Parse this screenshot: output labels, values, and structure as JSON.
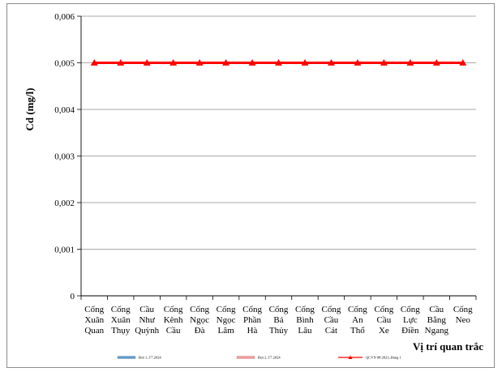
{
  "chart_data": {
    "type": "line",
    "ylabel": "Cd (mg/l)",
    "xlabel": "Vị trí quan trắc",
    "ylim": [
      0,
      0.006
    ],
    "yticks": [
      {
        "value": 0,
        "label": "0"
      },
      {
        "value": 0.001,
        "label": "0,001"
      },
      {
        "value": 0.002,
        "label": "0,002"
      },
      {
        "value": 0.003,
        "label": "0,003"
      },
      {
        "value": 0.004,
        "label": "0,004"
      },
      {
        "value": 0.005,
        "label": "0,005"
      },
      {
        "value": 0.006,
        "label": "0,006"
      }
    ],
    "grid": true,
    "legend_position": "bottom",
    "categories": [
      [
        "Cống",
        "Xuân",
        "Quan"
      ],
      [
        "Cống",
        "Xuân",
        "Thụy"
      ],
      [
        "Cầu",
        "Như",
        "Quỳnh"
      ],
      [
        "Cống",
        "Kênh",
        "Cầu"
      ],
      [
        "Cống",
        "Ngọc",
        "Đà"
      ],
      [
        "Cống",
        "Ngọc",
        "Lâm"
      ],
      [
        "Cống",
        "Phần",
        "Hà"
      ],
      [
        "Cống",
        "Bá",
        "Thủy"
      ],
      [
        "Cống",
        "Bình",
        "Lâu"
      ],
      [
        "Cống",
        "Cầu",
        "Cát"
      ],
      [
        "Cống",
        "An",
        "Thổ"
      ],
      [
        "Cống",
        "Cầu",
        "Xe"
      ],
      [
        "Cống",
        "Lực",
        "Điền"
      ],
      [
        "Cầu",
        "Bằng",
        "Ngang"
      ],
      [
        "Cống",
        "Neo"
      ]
    ],
    "series": [
      {
        "name": "Đợt 1_T7.2024",
        "color": "#5b9bd5",
        "marker": "none",
        "values": [
          null,
          null,
          null,
          null,
          null,
          null,
          null,
          null,
          null,
          null,
          null,
          null,
          null,
          null,
          null
        ]
      },
      {
        "name": "Đợt 2_T7.2024",
        "color": "#ff9999",
        "marker": "none",
        "values": [
          null,
          null,
          null,
          null,
          null,
          null,
          null,
          null,
          null,
          null,
          null,
          null,
          null,
          null,
          null
        ]
      },
      {
        "name": "QCVN 08:2023_Bảng 1",
        "color": "#ff0000",
        "marker": "triangle",
        "values": [
          0.005,
          0.005,
          0.005,
          0.005,
          0.005,
          0.005,
          0.005,
          0.005,
          0.005,
          0.005,
          0.005,
          0.005,
          0.005,
          0.005,
          0.005
        ]
      }
    ]
  }
}
